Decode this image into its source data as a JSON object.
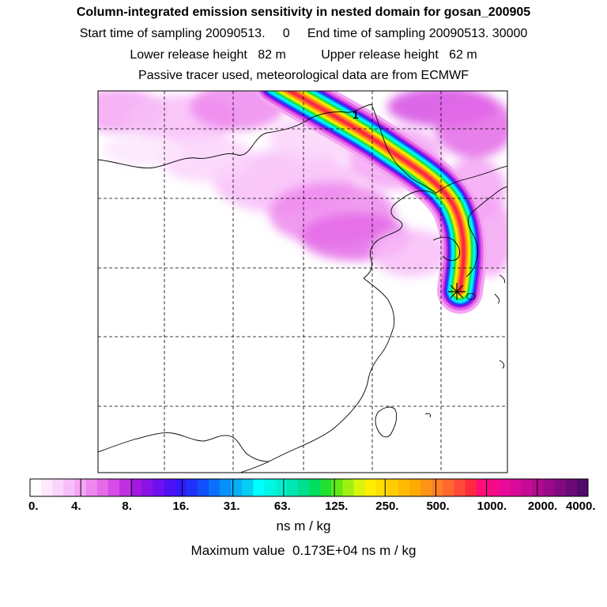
{
  "header": {
    "title": "Column-integrated emission sensitivity in nested domain for gosan_200905",
    "line2": "Start time of sampling 20090513.     0     End time of sampling 20090513. 30000",
    "line3": "Lower release height   82 m          Upper release height   62 m",
    "line4": "Passive tracer used, meteorological data are from ECMWF"
  },
  "chart_data": {
    "type": "heatmap",
    "title": "Column-integrated emission sensitivity in nested domain for gosan_200905",
    "colorbar": {
      "tick_labels": [
        "0.",
        "4.",
        "8.",
        "16.",
        "31.",
        "63.",
        "125.",
        "250.",
        "500.",
        "1000.",
        "2000.",
        "4000."
      ],
      "colors": [
        "#ffffff",
        "#fde8fd",
        "#fbd4fb",
        "#f8bef8",
        "#f4a6f4",
        "#ee88ee",
        "#e46ae8",
        "#d64ce4",
        "#c030e2",
        "#a418e0",
        "#8a12e8",
        "#6e10ee",
        "#5010f4",
        "#3418f8",
        "#2030fa",
        "#1050fa",
        "#0a70fa",
        "#0890f8",
        "#06b0f4",
        "#04cef2",
        "#00ffff",
        "#00f6e4",
        "#00eecc",
        "#00e6b0",
        "#00de92",
        "#00dd60",
        "#20e030",
        "#60e818",
        "#a0ef10",
        "#d8f50c",
        "#ffee00",
        "#ffdd00",
        "#ffcc00",
        "#ffbb00",
        "#ffaa00",
        "#ff9414",
        "#ff7e24",
        "#ff6630",
        "#ff4a3a",
        "#ff2a40",
        "#ff0e78",
        "#f50a88",
        "#e80a98",
        "#d80a98",
        "#c60a96",
        "#b00a90",
        "#980a88",
        "#820a80",
        "#6a0a76",
        "#520a68"
      ],
      "units": "ns m / kg"
    },
    "maximum_value_text": "Maximum value  0.173E+04 ns m / kg",
    "plume_label": "1",
    "release_site_marker": "star",
    "grid": "dashed"
  }
}
